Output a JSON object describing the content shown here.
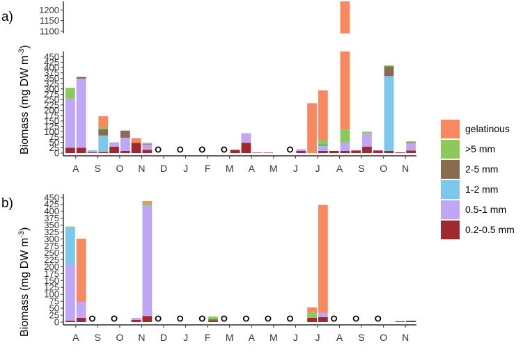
{
  "chart_data": {
    "type": "bar",
    "stacked": true,
    "categories": [
      "A",
      "S",
      "O",
      "N",
      "D",
      "J",
      "F",
      "M",
      "A",
      "M",
      "J",
      "J",
      "A",
      "S",
      "O",
      "N"
    ],
    "size_classes": [
      "0.2-0.5 mm",
      "0.5-1 mm",
      "1-2 mm",
      "2-5 mm",
      ">5 mm",
      "gelatinous"
    ],
    "colors": {
      "0.2-0.5 mm": "#9e2a2f",
      "0.5-1 mm": "#c0a7f6",
      "1-2 mm": "#7cc8eb",
      "2-5 mm": "#8a6a50",
      ">5 mm": "#8cc95b",
      "gelatinous": "#f98760"
    },
    "legend": {
      "position": "right",
      "items": [
        "gelatinous",
        ">5 mm",
        "2-5 mm",
        "1-2 mm",
        "0.5-1 mm",
        "0.2-0.5 mm"
      ]
    },
    "ylabel_main": "Biomass (mg DW m",
    "ylabel_sup": "-3",
    "ylabel_close": ")",
    "panels": [
      {
        "label": "a)",
        "ylim": [
          0,
          475
        ],
        "yticks": [
          0,
          25,
          50,
          75,
          100,
          125,
          150,
          175,
          200,
          225,
          250,
          275,
          300,
          325,
          350,
          375,
          400,
          425,
          450
        ],
        "upper_ylim": [
          1090,
          1240
        ],
        "upper_yticks": [
          1100,
          1150,
          1200
        ],
        "no_sample_slots": [
          8,
          10,
          12,
          14,
          20
        ],
        "bars": [
          {
            "month_index": 0,
            "slot": 0,
            "values": {
              "0.2-0.5 mm": 25,
              "0.5-1 mm": 230,
              "1-2 mm": 0,
              "2-5 mm": 0,
              ">5 mm": 50,
              "gelatinous": 0
            }
          },
          {
            "month_index": 0,
            "slot": 1,
            "values": {
              "0.2-0.5 mm": 25,
              "0.5-1 mm": 323,
              "1-2 mm": 0,
              "2-5 mm": 8,
              ">5 mm": 0,
              "gelatinous": 0
            }
          },
          {
            "month_index": 1,
            "slot": 2,
            "values": {
              "0.2-0.5 mm": 3,
              "0.5-1 mm": 8,
              "1-2 mm": 2,
              "2-5 mm": 0,
              ">5 mm": 0,
              "gelatinous": 0
            }
          },
          {
            "month_index": 1,
            "slot": 3,
            "values": {
              "0.2-0.5 mm": 5,
              "0.5-1 mm": 2,
              "1-2 mm": 75,
              "2-5 mm": 30,
              ">5 mm": 10,
              "gelatinous": 50
            }
          },
          {
            "month_index": 2,
            "slot": 4,
            "values": {
              "0.2-0.5 mm": 30,
              "0.5-1 mm": 20,
              "1-2 mm": 0,
              "2-5 mm": 0,
              ">5 mm": 0,
              "gelatinous": 0
            }
          },
          {
            "month_index": 2,
            "slot": 5,
            "values": {
              "0.2-0.5 mm": 10,
              "0.5-1 mm": 62,
              "1-2 mm": 0,
              "2-5 mm": 33,
              ">5 mm": 0,
              "gelatinous": 0
            }
          },
          {
            "month_index": 3,
            "slot": 6,
            "values": {
              "0.2-0.5 mm": 48,
              "0.5-1 mm": 0,
              "1-2 mm": 0,
              "2-5 mm": 0,
              ">5 mm": 0,
              "gelatinous": 22
            }
          },
          {
            "month_index": 3,
            "slot": 7,
            "values": {
              "0.2-0.5 mm": 15,
              "0.5-1 mm": 25,
              "1-2 mm": 0,
              "2-5 mm": 3,
              ">5 mm": 5,
              "gelatinous": 0
            }
          },
          {
            "month_index": 7,
            "slot": 15,
            "values": {
              "0.2-0.5 mm": 15,
              "0.5-1 mm": 0,
              "1-2 mm": 0,
              "2-5 mm": 0,
              ">5 mm": 0,
              "gelatinous": 0
            }
          },
          {
            "month_index": 7,
            "slot": 16,
            "values": {
              "0.2-0.5 mm": 48,
              "0.5-1 mm": 45,
              "1-2 mm": 0,
              "2-5 mm": 0,
              ">5 mm": 0,
              "gelatinous": 0
            }
          },
          {
            "month_index": 8,
            "slot": 17,
            "values": {
              "0.2-0.5 mm": 2,
              "0.5-1 mm": 0,
              "1-2 mm": 0,
              "2-5 mm": 0,
              ">5 mm": 0,
              "gelatinous": 0
            }
          },
          {
            "month_index": 8,
            "slot": 18,
            "values": {
              "0.2-0.5 mm": 2,
              "0.5-1 mm": 0,
              "1-2 mm": 0,
              "2-5 mm": 0,
              ">5 mm": 0,
              "gelatinous": 0
            }
          },
          {
            "month_index": 10,
            "slot": 21,
            "values": {
              "0.2-0.5 mm": 10,
              "0.5-1 mm": 8,
              "1-2 mm": 0,
              "2-5 mm": 0,
              ">5 mm": 0,
              "gelatinous": 0
            }
          },
          {
            "month_index": 11,
            "slot": 22,
            "values": {
              "0.2-0.5 mm": 0,
              "0.5-1 mm": 0,
              "1-2 mm": 0,
              "2-5 mm": 0,
              ">5 mm": 0,
              "gelatinous": 233
            }
          },
          {
            "month_index": 11,
            "slot": 23,
            "values": {
              "0.2-0.5 mm": 10,
              "0.5-1 mm": 20,
              "1-2 mm": 5,
              "2-5 mm": 5,
              ">5 mm": 20,
              "gelatinous": 233
            }
          },
          {
            "month_index": 12,
            "slot": 24,
            "values": {
              "0.2-0.5 mm": 10,
              "0.5-1 mm": 0,
              "1-2 mm": 0,
              "2-5 mm": 0,
              ">5 mm": 0,
              "gelatinous": 0
            }
          },
          {
            "month_index": 12,
            "slot": 25,
            "values": {
              "0.2-0.5 mm": 10,
              "0.5-1 mm": 40,
              "1-2 mm": 0,
              "2-5 mm": 0,
              ">5 mm": 60,
              "gelatinous": 1140
            }
          },
          {
            "month_index": 13,
            "slot": 26,
            "values": {
              "0.2-0.5 mm": 12,
              "0.5-1 mm": 0,
              "1-2 mm": 0,
              "2-5 mm": 0,
              ">5 mm": 0,
              "gelatinous": 0
            }
          },
          {
            "month_index": 13,
            "slot": 27,
            "values": {
              "0.2-0.5 mm": 30,
              "0.5-1 mm": 63,
              "1-2 mm": 0,
              "2-5 mm": 0,
              ">5 mm": 7,
              "gelatinous": 0
            }
          },
          {
            "month_index": 14,
            "slot": 28,
            "values": {
              "0.2-0.5 mm": 12,
              "0.5-1 mm": 0,
              "1-2 mm": 0,
              "2-5 mm": 0,
              ">5 mm": 0,
              "gelatinous": 0
            }
          },
          {
            "month_index": 14,
            "slot": 29,
            "values": {
              "0.2-0.5 mm": 10,
              "0.5-1 mm": 0,
              "1-2 mm": 350,
              "2-5 mm": 45,
              ">5 mm": 5,
              "gelatinous": 0
            }
          },
          {
            "month_index": 15,
            "slot": 30,
            "values": {
              "0.2-0.5 mm": 3,
              "0.5-1 mm": 0,
              "1-2 mm": 0,
              "2-5 mm": 0,
              ">5 mm": 0,
              "gelatinous": 0
            }
          },
          {
            "month_index": 15,
            "slot": 31,
            "values": {
              "0.2-0.5 mm": 12,
              "0.5-1 mm": 35,
              "1-2 mm": 0,
              "2-5 mm": 3,
              ">5 mm": 5,
              "gelatinous": 0
            }
          }
        ]
      },
      {
        "label": "b)",
        "ylim": [
          0,
          462
        ],
        "yticks": [
          0,
          25,
          50,
          75,
          100,
          125,
          150,
          175,
          200,
          225,
          250,
          275,
          300,
          325,
          350,
          375,
          400,
          425,
          450
        ],
        "no_sample_slots": [
          2,
          4,
          8,
          10,
          12,
          14,
          16,
          18,
          20,
          24,
          26,
          28
        ],
        "bars": [
          {
            "month_index": 0,
            "slot": 0,
            "values": {
              "0.2-0.5 mm": 5,
              "0.5-1 mm": 202,
              "1-2 mm": 135,
              "2-5 mm": 0,
              ">5 mm": 3,
              "gelatinous": 0
            }
          },
          {
            "month_index": 0,
            "slot": 1,
            "values": {
              "0.2-0.5 mm": 15,
              "0.5-1 mm": 58,
              "1-2 mm": 0,
              "2-5 mm": 0,
              ">5 mm": 0,
              "gelatinous": 228
            }
          },
          {
            "month_index": 3,
            "slot": 6,
            "values": {
              "0.2-0.5 mm": 8,
              "0.5-1 mm": 7,
              "1-2 mm": 0,
              "2-5 mm": 0,
              ">5 mm": 0,
              "gelatinous": 0
            }
          },
          {
            "month_index": 3,
            "slot": 7,
            "values": {
              "0.2-0.5 mm": 22,
              "0.5-1 mm": 398,
              "1-2 mm": 0,
              "2-5 mm": 0,
              ">5 mm": 10,
              "gelatinous": 7
            }
          },
          {
            "month_index": 6,
            "slot": 13,
            "values": {
              "0.2-0.5 mm": 5,
              "0.5-1 mm": 0,
              "1-2 mm": 0,
              "2-5 mm": 5,
              ">5 mm": 10,
              "gelatinous": 0
            }
          },
          {
            "month_index": 11,
            "slot": 22,
            "values": {
              "0.2-0.5 mm": 15,
              "0.5-1 mm": 0,
              "1-2 mm": 0,
              "2-5 mm": 0,
              ">5 mm": 20,
              "gelatinous": 18
            }
          },
          {
            "month_index": 11,
            "slot": 23,
            "values": {
              "0.2-0.5 mm": 18,
              "0.5-1 mm": 15,
              "1-2 mm": 0,
              "2-5 mm": 0,
              ">5 mm": 0,
              "gelatinous": 390
            }
          },
          {
            "month_index": 15,
            "slot": 30,
            "values": {
              "0.2-0.5 mm": 3,
              "0.5-1 mm": 0,
              "1-2 mm": 0,
              "2-5 mm": 0,
              ">5 mm": 0,
              "gelatinous": 0
            }
          },
          {
            "month_index": 15,
            "slot": 31,
            "values": {
              "0.2-0.5 mm": 5,
              "0.5-1 mm": 0,
              "1-2 mm": 0,
              "2-5 mm": 0,
              ">5 mm": 0,
              "gelatinous": 0
            }
          }
        ]
      }
    ]
  }
}
